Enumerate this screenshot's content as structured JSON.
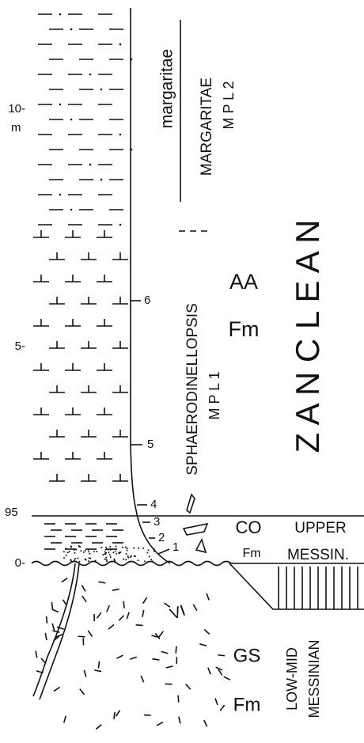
{
  "scale": {
    "ten": "10-",
    "unit": "m",
    "five": "5-",
    "top_co": "95",
    "zero": "0-"
  },
  "samples": [
    "6",
    "5",
    "4",
    "3",
    "2",
    "1"
  ],
  "biozones": {
    "upper_species": "margaritae",
    "upper_zone": "MARGARITAE",
    "upper_code": "M P L 2",
    "lower_zone": "SPHAERODINELLOPSIS",
    "lower_code": "M P L 1"
  },
  "formations": {
    "aa": "AA",
    "aa_fm": "Fm",
    "co": "CO",
    "co_fm": "Fm",
    "gs": "GS",
    "gs_fm": "Fm",
    "vi": "VI"
  },
  "stages": {
    "zanclean": "Z A N C L E A N",
    "upper": "UPPER",
    "messin": "MESSIN.",
    "low_mid": "LOW-MID",
    "messinian": "MESSINIAN"
  }
}
